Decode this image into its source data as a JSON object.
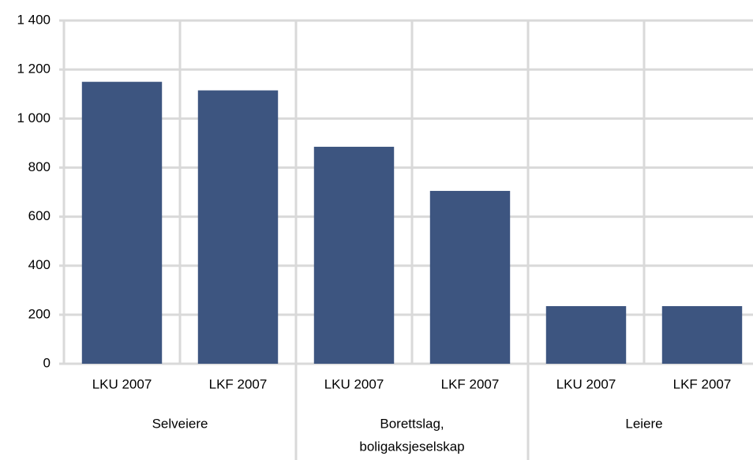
{
  "chart_data": {
    "type": "bar",
    "categories": [
      "LKU 2007",
      "LKF 2007",
      "LKU 2007",
      "LKF 2007",
      "LKU 2007",
      "LKF 2007"
    ],
    "groups": [
      [
        "Selveiere"
      ],
      [
        "Borettslag,",
        "boligaksjeselskap"
      ],
      [
        "Leiere"
      ]
    ],
    "values": [
      1150,
      1115,
      885,
      705,
      235,
      235
    ],
    "color": "#3d5580",
    "ylim": [
      0,
      1400
    ],
    "yticks": [
      0,
      200,
      400,
      600,
      800,
      {
        "value": 1000,
        "label": "1 000"
      },
      {
        "value": 1200,
        "label": "1 200"
      },
      {
        "value": 1400,
        "label": "1 400"
      }
    ],
    "grid": true
  }
}
